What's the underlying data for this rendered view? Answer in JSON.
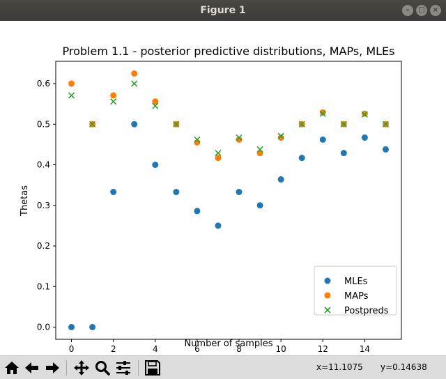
{
  "window": {
    "title": "Figure 1"
  },
  "toolbar": {
    "buttons": [
      {
        "name": "home-icon"
      },
      {
        "name": "back-icon"
      },
      {
        "name": "forward-icon"
      },
      {
        "name": "pan-icon"
      },
      {
        "name": "zoom-icon"
      },
      {
        "name": "configure-subplots-icon"
      },
      {
        "name": "save-icon"
      }
    ],
    "coord_x": "x=11.1075",
    "coord_y": "y=0.14638"
  },
  "chart_data": {
    "type": "scatter",
    "title": "Problem 1.1 - posterior predictive distributions, MAPs, MLEs",
    "xlabel": "Number of samples",
    "ylabel": "Thetas",
    "xlim": [
      -0.75,
      15.75
    ],
    "ylim": [
      -0.03,
      0.655
    ],
    "xticks": [
      0,
      2,
      4,
      6,
      8,
      10,
      12,
      14
    ],
    "yticks": [
      0.0,
      0.1,
      0.2,
      0.3,
      0.4,
      0.5,
      0.6
    ],
    "ytick_labels": [
      "0.0",
      "0.1",
      "0.2",
      "0.3",
      "0.4",
      "0.5",
      "0.6"
    ],
    "legend_position": "lower-right",
    "series": [
      {
        "name": "MLEs",
        "marker": "circle",
        "color": "#1f77b4",
        "x": [
          0,
          1,
          2,
          3,
          4,
          5,
          6,
          7,
          8,
          9,
          10,
          11,
          12,
          13,
          14,
          15
        ],
        "y": [
          0.0,
          0.0,
          0.333,
          0.5,
          0.4,
          0.333,
          0.286,
          0.25,
          0.333,
          0.3,
          0.364,
          0.417,
          0.462,
          0.429,
          0.467,
          0.438
        ]
      },
      {
        "name": "MAPs",
        "marker": "circle",
        "color": "#ff7f0e",
        "x": [
          0,
          1,
          2,
          3,
          4,
          5,
          6,
          7,
          8,
          9,
          10,
          11,
          12,
          13,
          14,
          15
        ],
        "y": [
          0.6,
          0.5,
          0.571,
          0.625,
          0.556,
          0.5,
          0.455,
          0.417,
          0.462,
          0.429,
          0.467,
          0.5,
          0.529,
          0.5,
          0.526,
          0.5
        ]
      },
      {
        "name": "Postpreds",
        "marker": "x",
        "color": "#2ca02c",
        "x": [
          0,
          1,
          2,
          3,
          4,
          5,
          6,
          7,
          8,
          9,
          10,
          11,
          12,
          13,
          14,
          15
        ],
        "y": [
          0.571,
          0.5,
          0.556,
          0.6,
          0.545,
          0.5,
          0.462,
          0.429,
          0.467,
          0.438,
          0.471,
          0.5,
          0.526,
          0.5,
          0.524,
          0.5
        ]
      }
    ]
  }
}
